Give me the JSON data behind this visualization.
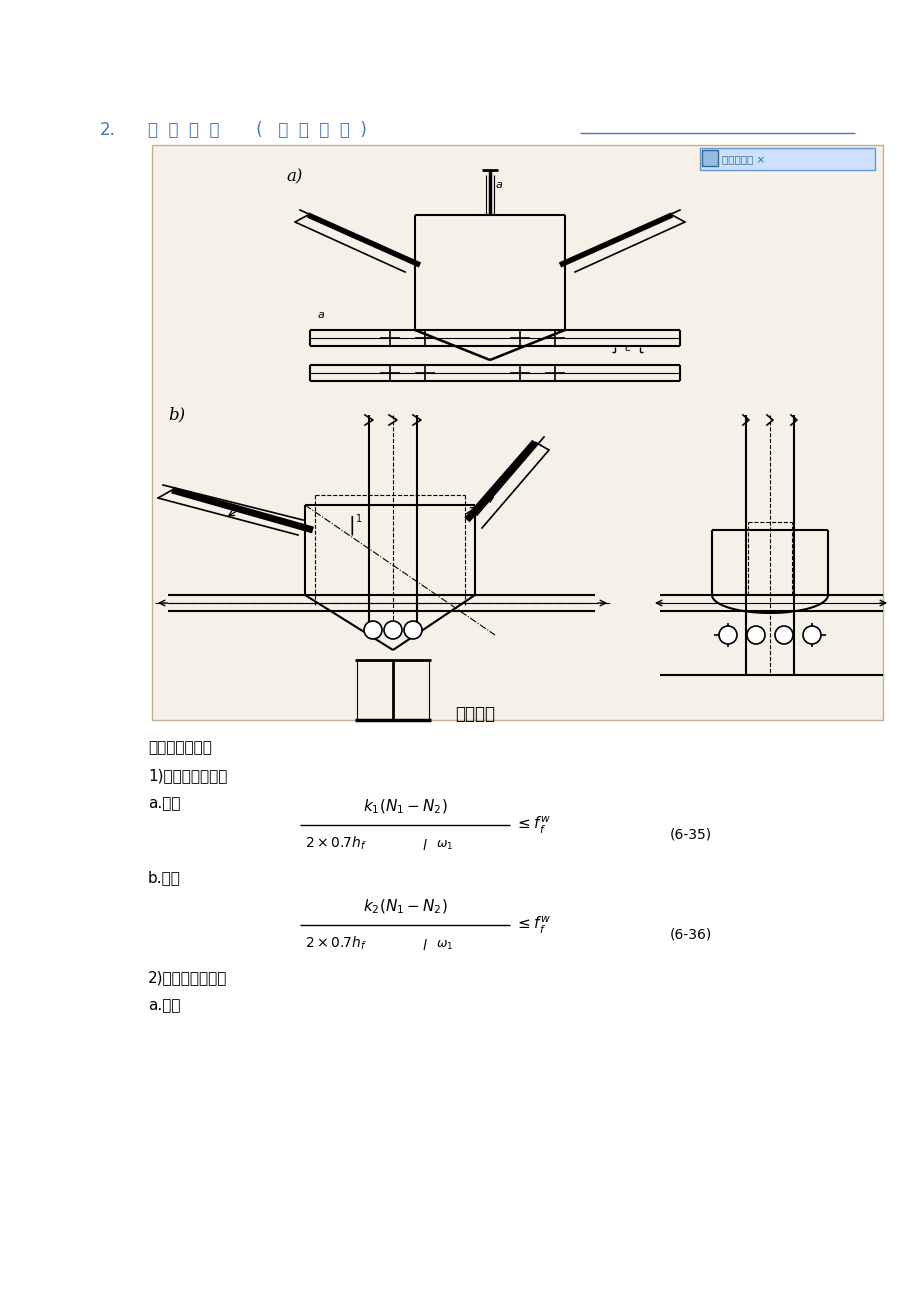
{
  "fig_width": 9.2,
  "fig_height": 13.02,
  "dpi": 100,
  "bg_color": "#ffffff",
  "title_color": "#4472c4",
  "title_num": "2.",
  "title_text": "下  弦  节  点       (   如  图  所  示  )",
  "mini_window_text": "小窗口播放 ×",
  "box_bg": "#f5f0e8",
  "box_border": "#c0b090",
  "label_a": "a)",
  "label_b": "b)",
  "caption": "下弦节点",
  "text_line1": "同上弦节点设计",
  "text_line2": "1)节点处无外荷载",
  "text_line3": "a.肢背",
  "text_line4": "b.肢尖",
  "text_line5": "2)节点处有外荷载",
  "text_line6": "a.肢背",
  "formula1_label": "(6-35)",
  "formula2_label": "(6-36)"
}
